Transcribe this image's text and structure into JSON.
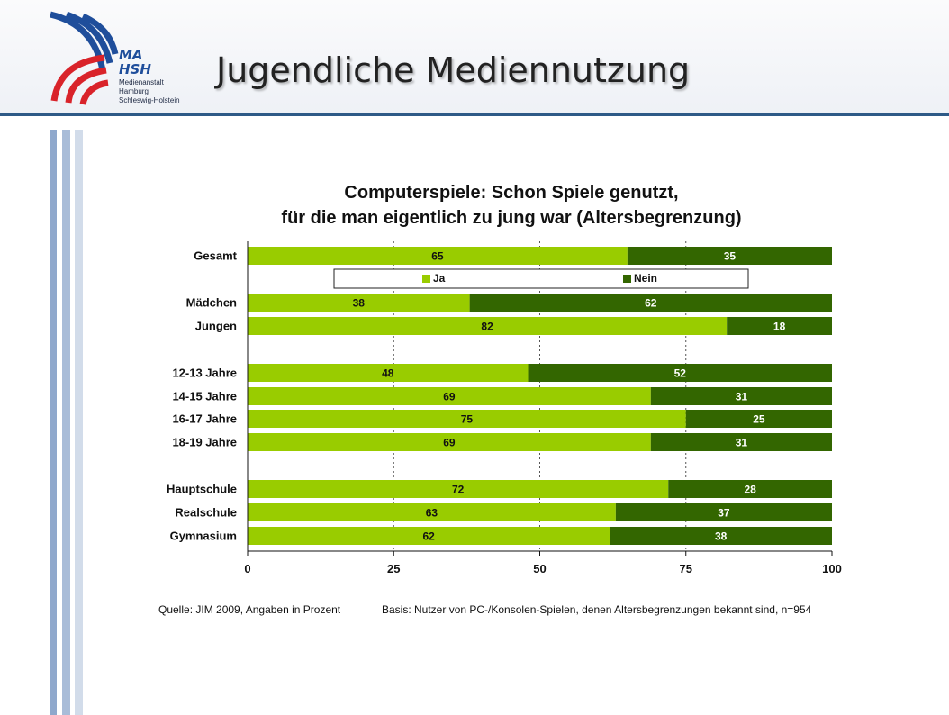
{
  "header": {
    "title": "Jugendliche Mediennutzung",
    "logo": {
      "mark_line1": "MA",
      "mark_line2": "HSH",
      "line1": "Medienanstalt",
      "line2": "Hamburg",
      "line3": "Schleswig-Holstein"
    }
  },
  "chart_data": {
    "type": "bar",
    "stacked": true,
    "orientation": "horizontal",
    "title_line1": "Computerspiele: Schon Spiele genutzt,",
    "title_line2": "für die man eigentlich zu jung war (Altersbegrenzung)",
    "categories": [
      "Gesamt",
      "Mädchen",
      "Jungen",
      "12-13 Jahre",
      "14-15 Jahre",
      "16-17 Jahre",
      "18-19 Jahre",
      "Hauptschule",
      "Realschule",
      "Gymnasium"
    ],
    "series": [
      {
        "name": "Ja",
        "values": [
          65,
          38,
          82,
          48,
          69,
          75,
          69,
          72,
          63,
          62
        ],
        "color": "#99cc00"
      },
      {
        "name": "Nein",
        "values": [
          35,
          62,
          18,
          52,
          31,
          25,
          31,
          28,
          37,
          38
        ],
        "color": "#336600"
      }
    ],
    "xlim": [
      0,
      100
    ],
    "xticks": [
      "0",
      "25",
      "50",
      "75",
      "100"
    ],
    "grid": "dotted vertical",
    "legend": "top",
    "source": "Quelle: JIM 2009, Angaben in Prozent",
    "basis": "Basis: Nutzer von PC-/Konsolen-Spielen, denen Altersbegrenzungen bekannt sind, n=954"
  }
}
